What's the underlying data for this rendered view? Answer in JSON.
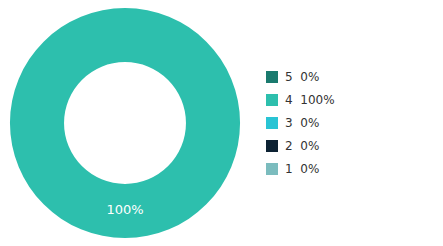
{
  "chart_data": {
    "type": "donut",
    "categories": [
      "5  0%",
      "4  100%",
      "3  0%",
      "2  0%",
      "1  0%"
    ],
    "values": [
      0,
      100,
      0,
      0,
      0
    ],
    "colors": [
      "#1a7a6e",
      "#2dbfad",
      "#29c4d4",
      "#0d2233",
      "#7bbcbe"
    ],
    "annotations": [
      "100%"
    ],
    "legend": "right"
  }
}
